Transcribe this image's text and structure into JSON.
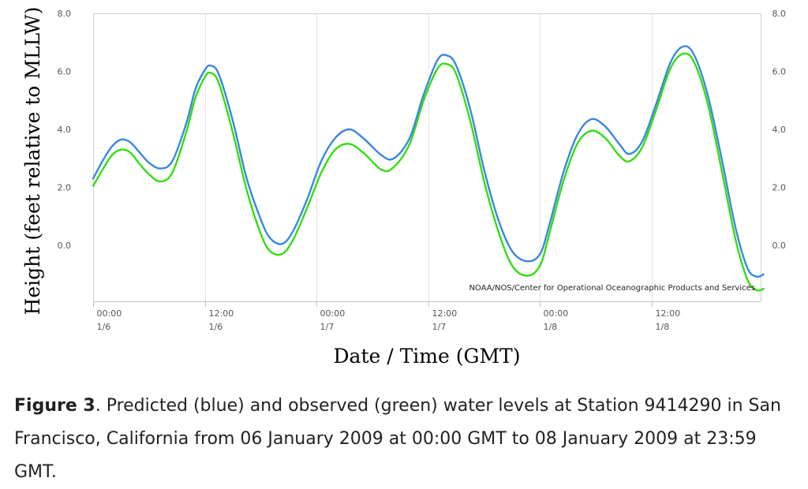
{
  "chart_data": {
    "type": "line",
    "title": "",
    "xlabel": "Date / Time (GMT)",
    "ylabel": "Height (feet relative to MLLW)",
    "ylim": [
      -2.0,
      8.0
    ],
    "y_ticks": [
      "8.0",
      "6.0",
      "4.0",
      "2.0",
      "0.0"
    ],
    "x_unit": "hours since 2009-01-06 00:00 GMT",
    "xlim": [
      0,
      72
    ],
    "x_ticks": [
      {
        "time": "00:00",
        "date": "1/6",
        "x": 0
      },
      {
        "time": "12:00",
        "date": "1/6",
        "x": 12
      },
      {
        "time": "00:00",
        "date": "1/7",
        "x": 24
      },
      {
        "time": "12:00",
        "date": "1/7",
        "x": 36
      },
      {
        "time": "00:00",
        "date": "1/8",
        "x": 48
      },
      {
        "time": "12:00",
        "date": "1/8",
        "x": 60
      }
    ],
    "credit": "NOAA/NOS/Center for Operational Oceanographic Products and Services",
    "series": [
      {
        "name": "Predicted",
        "color": "#3a87e0",
        "points": [
          [
            0,
            2.3
          ],
          [
            1,
            2.9
          ],
          [
            2,
            3.4
          ],
          [
            3,
            3.65
          ],
          [
            4,
            3.55
          ],
          [
            5,
            3.2
          ],
          [
            6,
            2.85
          ],
          [
            7.2,
            2.65
          ],
          [
            8.5,
            2.9
          ],
          [
            10,
            4.2
          ],
          [
            11,
            5.4
          ],
          [
            12,
            6.05
          ],
          [
            12.6,
            6.2
          ],
          [
            13.5,
            5.9
          ],
          [
            15,
            4.3
          ],
          [
            16.5,
            2.3
          ],
          [
            18,
            0.9
          ],
          [
            19,
            0.25
          ],
          [
            20.3,
            0.05
          ],
          [
            21.5,
            0.5
          ],
          [
            23,
            1.6
          ],
          [
            24.5,
            2.9
          ],
          [
            26,
            3.7
          ],
          [
            27.5,
            4.0
          ],
          [
            29,
            3.7
          ],
          [
            31,
            3.1
          ],
          [
            32.3,
            3.0
          ],
          [
            34,
            3.7
          ],
          [
            35.5,
            5.2
          ],
          [
            37,
            6.4
          ],
          [
            38,
            6.55
          ],
          [
            39,
            6.2
          ],
          [
            40.5,
            4.7
          ],
          [
            42,
            2.6
          ],
          [
            43.5,
            0.9
          ],
          [
            45,
            -0.2
          ],
          [
            46.6,
            -0.55
          ],
          [
            48,
            -0.3
          ],
          [
            49,
            0.7
          ],
          [
            50.5,
            2.5
          ],
          [
            52,
            3.8
          ],
          [
            53.5,
            4.35
          ],
          [
            55,
            4.1
          ],
          [
            56.5,
            3.5
          ],
          [
            57.6,
            3.15
          ],
          [
            59,
            3.6
          ],
          [
            60.5,
            4.9
          ],
          [
            62,
            6.3
          ],
          [
            63.3,
            6.85
          ],
          [
            64.5,
            6.6
          ],
          [
            66,
            5.2
          ],
          [
            67.5,
            3.0
          ],
          [
            69,
            0.6
          ],
          [
            70.3,
            -0.8
          ],
          [
            71.3,
            -1.08
          ],
          [
            72,
            -1.0
          ]
        ]
      },
      {
        "name": "Observed",
        "color": "#33dd11",
        "points": [
          [
            0,
            2.05
          ],
          [
            1,
            2.6
          ],
          [
            2,
            3.1
          ],
          [
            3,
            3.3
          ],
          [
            4,
            3.2
          ],
          [
            5,
            2.8
          ],
          [
            6,
            2.45
          ],
          [
            7.2,
            2.2
          ],
          [
            8.5,
            2.5
          ],
          [
            10,
            3.9
          ],
          [
            11,
            5.1
          ],
          [
            12,
            5.8
          ],
          [
            12.6,
            5.95
          ],
          [
            13.5,
            5.6
          ],
          [
            15,
            3.9
          ],
          [
            16.5,
            1.9
          ],
          [
            18,
            0.4
          ],
          [
            19,
            -0.2
          ],
          [
            20.3,
            -0.3
          ],
          [
            21.5,
            0.2
          ],
          [
            23,
            1.3
          ],
          [
            24.5,
            2.5
          ],
          [
            26,
            3.3
          ],
          [
            27.5,
            3.5
          ],
          [
            29,
            3.2
          ],
          [
            31,
            2.6
          ],
          [
            32.3,
            2.7
          ],
          [
            34,
            3.5
          ],
          [
            35.5,
            5.0
          ],
          [
            37,
            6.1
          ],
          [
            38,
            6.25
          ],
          [
            39,
            5.9
          ],
          [
            40.5,
            4.3
          ],
          [
            42,
            2.2
          ],
          [
            43.5,
            0.5
          ],
          [
            45,
            -0.7
          ],
          [
            46.6,
            -1.05
          ],
          [
            48,
            -0.7
          ],
          [
            49,
            0.4
          ],
          [
            50.5,
            2.2
          ],
          [
            52,
            3.5
          ],
          [
            53.5,
            3.95
          ],
          [
            55,
            3.7
          ],
          [
            56.5,
            3.1
          ],
          [
            57.6,
            2.9
          ],
          [
            59,
            3.4
          ],
          [
            60.5,
            4.7
          ],
          [
            62,
            6.1
          ],
          [
            63.3,
            6.6
          ],
          [
            64.5,
            6.35
          ],
          [
            66,
            4.9
          ],
          [
            67.5,
            2.6
          ],
          [
            69,
            0.2
          ],
          [
            70.3,
            -1.2
          ],
          [
            71.3,
            -1.55
          ],
          [
            72,
            -1.5
          ]
        ]
      }
    ]
  },
  "caption": {
    "lead": "Figure 3",
    "text": ".  Predicted (blue) and observed (green) water levels at Station 9414290 in San Francisco, California from 06 January 2009 at 00:00 GMT to 08 January 2009 at 23:59 GMT."
  }
}
